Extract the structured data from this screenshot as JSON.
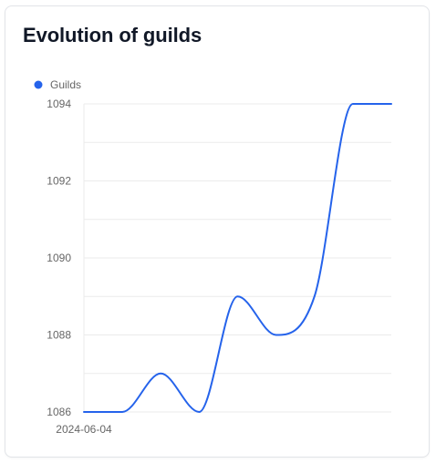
{
  "card": {
    "title": "Evolution of guilds"
  },
  "chart_data": {
    "type": "line",
    "x": [
      "2024-06-04",
      "",
      "",
      "",
      "",
      "",
      "",
      "",
      ""
    ],
    "series": [
      {
        "name": "Guilds",
        "color": "#2563eb",
        "values": [
          1086,
          1086,
          1087,
          1086,
          1089,
          1088,
          1089,
          1094,
          1094
        ]
      }
    ],
    "xlabel": "",
    "ylabel": "",
    "ylim": [
      1086,
      1094
    ],
    "yticks": [
      1086,
      1088,
      1090,
      1092,
      1094
    ],
    "legend": "top-left",
    "grid": true,
    "curve": "smooth"
  }
}
